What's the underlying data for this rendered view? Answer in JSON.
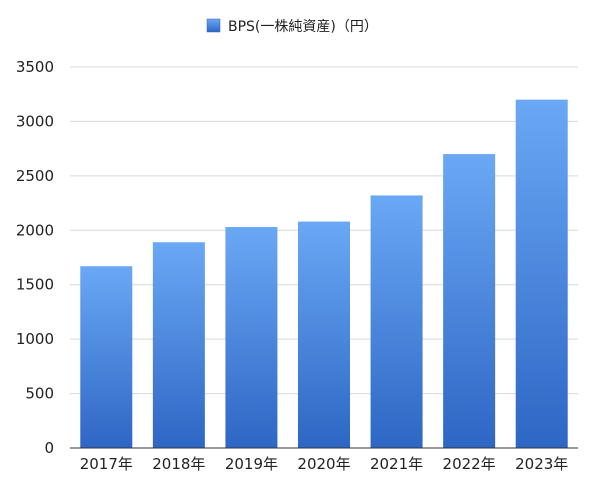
{
  "chart_data": {
    "type": "bar",
    "title": "",
    "xlabel": "",
    "ylabel": "",
    "categories": [
      "2017年",
      "2018年",
      "2019年",
      "2020年",
      "2021年",
      "2022年",
      "2023年"
    ],
    "series": [
      {
        "name": "BPS(一株純資産)（円）",
        "values": [
          1670,
          1890,
          2030,
          2080,
          2320,
          2700,
          3200
        ],
        "color_top": "#6aa8f5",
        "color_bottom": "#2e66c4"
      }
    ],
    "ylim": [
      0,
      3500
    ],
    "yticks": [
      0,
      500,
      1000,
      1500,
      2000,
      2500,
      3000,
      3500
    ],
    "grid": true,
    "legend_position": "top-center"
  }
}
